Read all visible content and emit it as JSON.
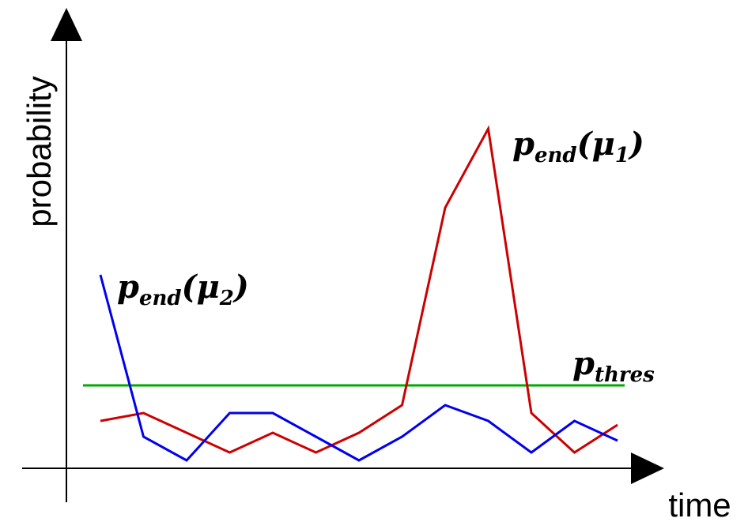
{
  "chart_data": {
    "type": "line",
    "xlabel": "time",
    "ylabel": "probability",
    "x": [
      1,
      2,
      3,
      4,
      5,
      6,
      7,
      8,
      9,
      10,
      11,
      12,
      13,
      14
    ],
    "series": [
      {
        "name": "p_end(μ1)",
        "label_main": "p",
        "label_sub": "end",
        "label_arg": "(μ",
        "label_arg_sub": "1",
        "label_close": ")",
        "color": "#cc0000",
        "values": [
          0.06,
          0.07,
          0.045,
          0.02,
          0.045,
          0.02,
          0.045,
          0.08,
          0.33,
          0.43,
          0.07,
          0.02,
          0.055,
          null
        ]
      },
      {
        "name": "p_end(μ2)",
        "label_main": "p",
        "label_sub": "end",
        "label_arg": "(μ",
        "label_arg_sub": "2",
        "label_close": ")",
        "color": "#0000ee",
        "values": [
          0.245,
          0.04,
          0.01,
          0.07,
          0.07,
          0.04,
          0.01,
          0.04,
          0.08,
          0.06,
          0.02,
          0.06,
          0.035,
          null
        ]
      }
    ],
    "threshold": {
      "name": "p_thres",
      "label_main": "p",
      "label_sub": "thres",
      "value": 0.105,
      "color": "#00aa00"
    },
    "ylim": [
      0,
      0.5
    ],
    "grid": false,
    "legend": "inline labels"
  }
}
